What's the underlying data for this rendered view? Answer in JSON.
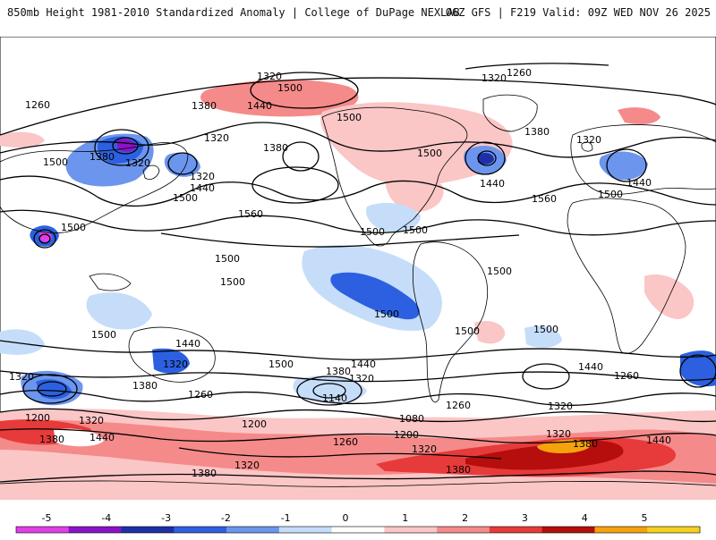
{
  "header": {
    "left": "850mb Height 1981-2010 Standardized Anomaly | College of DuPage NEXLAB",
    "right": "06Z GFS | F219 Valid: 09Z WED NOV 26 2025"
  },
  "map": {
    "land_color": "#ffffff",
    "ocean_color": "#ffffff",
    "border_color": "#000000",
    "contour_labels": {
      "c1260": "1260",
      "c1320": "1320",
      "c1380": "1380",
      "c1440": "1440",
      "c1500": "1500",
      "c1560": "1560",
      "c1200": "1200",
      "c1140": "1140",
      "c1080": "1080"
    }
  },
  "colorbar": {
    "ticks": [
      "-5",
      "-4",
      "-3",
      "-2",
      "-1",
      "0",
      "1",
      "2",
      "3",
      "4",
      "5"
    ],
    "colors": [
      "#e13ee6",
      "#8a12c8",
      "#1f2fa6",
      "#2c60e0",
      "#6c95ee",
      "#c6ddfa",
      "#ffffff",
      "#fbc6c6",
      "#f58a8a",
      "#e73a3a",
      "#b60d0d",
      "#f5a20c",
      "#f5d020"
    ]
  }
}
